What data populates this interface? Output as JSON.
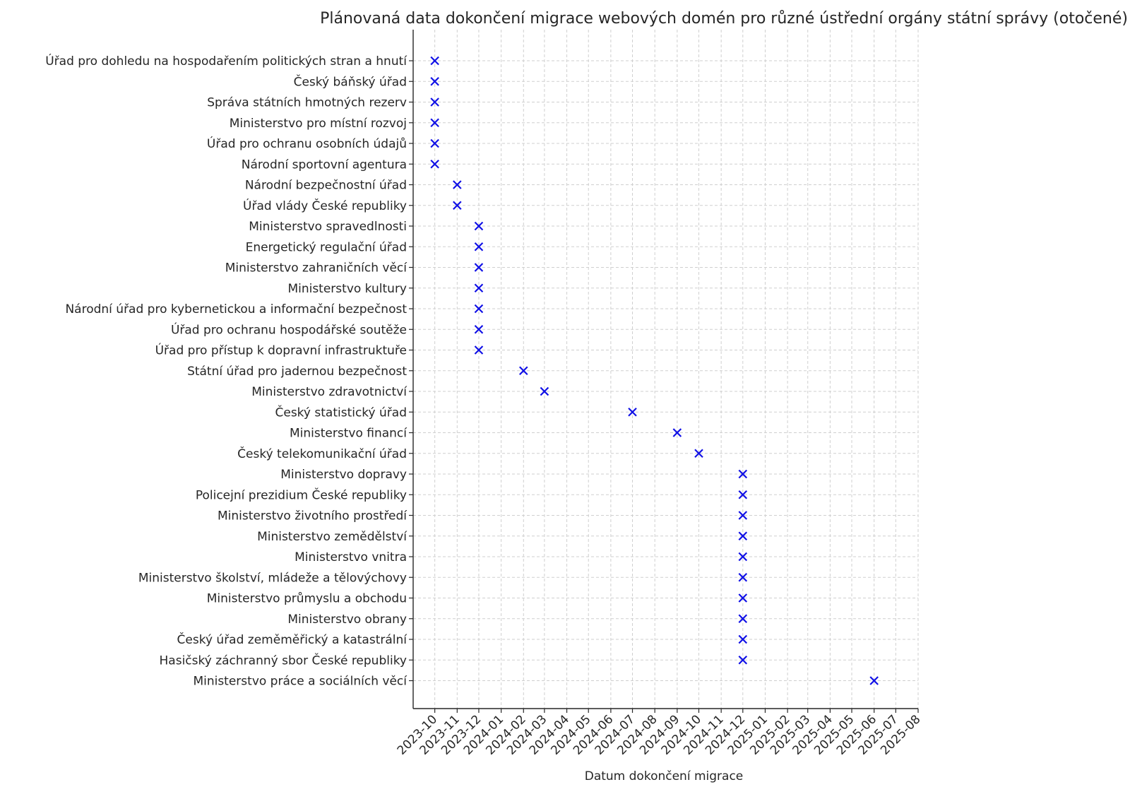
{
  "chart_data": {
    "type": "scatter",
    "title": "Plánovaná data dokončení migrace webových domén pro různé ústřední orgány státní správy (otočené)",
    "xlabel": "Datum dokončení migrace",
    "ylabel": "",
    "marker": "x",
    "colors": {
      "marker": "#1010e6",
      "grid": "#cfcfcf",
      "axis": "#262626"
    },
    "grid": true,
    "x_ticks": [
      "2023-10",
      "2023-11",
      "2023-12",
      "2024-01",
      "2024-02",
      "2024-03",
      "2024-04",
      "2024-05",
      "2024-06",
      "2024-07",
      "2024-08",
      "2024-09",
      "2024-10",
      "2024-11",
      "2024-12",
      "2025-01",
      "2025-02",
      "2025-03",
      "2025-04",
      "2025-05",
      "2025-06",
      "2025-07",
      "2025-08"
    ],
    "xlim": [
      "2023-09-01",
      "2025-08-01"
    ],
    "points": [
      {
        "label": "Úřad pro dohledu na hospodařením politických stran a hnutí",
        "date": "2023-10-01"
      },
      {
        "label": "Český báňský úřad​",
        "date": "2023-10-01"
      },
      {
        "label": "Správa státních hmotných rezerv",
        "date": "2023-10-01"
      },
      {
        "label": "Ministerstvo pro místní rozvoj",
        "date": "2023-10-01"
      },
      {
        "label": "Úřad pro ochranu osobních údajů",
        "date": "2023-10-01"
      },
      {
        "label": "Národní sportovní agentura",
        "date": "2023-10-01"
      },
      {
        "label": "Národní bezpečnostní úřad",
        "date": "2023-11-01"
      },
      {
        "label": "Úřad vlády České republiky",
        "date": "2023-11-01"
      },
      {
        "label": "Ministerstvo spravedlnosti",
        "date": "2023-12-01"
      },
      {
        "label": "Energetický regulační úřad",
        "date": "2023-12-01"
      },
      {
        "label": "Ministerstvo zahraničních věcí",
        "date": "2023-12-01"
      },
      {
        "label": "Ministerstvo kultury",
        "date": "2023-12-01"
      },
      {
        "label": "Národní úřad pro kybernetickou a informační bezpečnost",
        "date": "2023-12-01"
      },
      {
        "label": "Úřad pro ochranu hospodářské soutěže",
        "date": "2023-12-01"
      },
      {
        "label": "Úřad pro přístup k dopravní infrastruktuře",
        "date": "2023-12-01"
      },
      {
        "label": "Státní úřad pro jadernou bezpečnost",
        "date": "2024-02-01"
      },
      {
        "label": "Ministerstvo zdravotnictví",
        "date": "2024-03-01"
      },
      {
        "label": "Český statistický úřad",
        "date": "2024-07-01"
      },
      {
        "label": "Ministerstvo financí",
        "date": "2024-09-01"
      },
      {
        "label": "Český telekomunikační úřad",
        "date": "2024-10-01"
      },
      {
        "label": "Ministerstvo dopravy",
        "date": "2024-12-01"
      },
      {
        "label": "Policejní prezidium České republiky",
        "date": "2024-12-01"
      },
      {
        "label": "Ministerstvo životního prostředí",
        "date": "2024-12-01"
      },
      {
        "label": "Ministerstvo zemědělství",
        "date": "2024-12-01"
      },
      {
        "label": "Ministerstvo vnitra",
        "date": "2024-12-01"
      },
      {
        "label": "Ministerstvo školství, mládeže a tělovýchovy",
        "date": "2024-12-01"
      },
      {
        "label": "Ministerstvo průmyslu a obchodu",
        "date": "2024-12-01"
      },
      {
        "label": "Ministerstvo obrany",
        "date": "2024-12-01"
      },
      {
        "label": "Český úřad zeměměřický a katastrální",
        "date": "2024-12-01"
      },
      {
        "label": "Hasičský záchranný sbor České republiky",
        "date": "2024-12-01"
      },
      {
        "label": "Ministerstvo práce a sociálních věcí",
        "date": "2025-06-01"
      }
    ]
  }
}
